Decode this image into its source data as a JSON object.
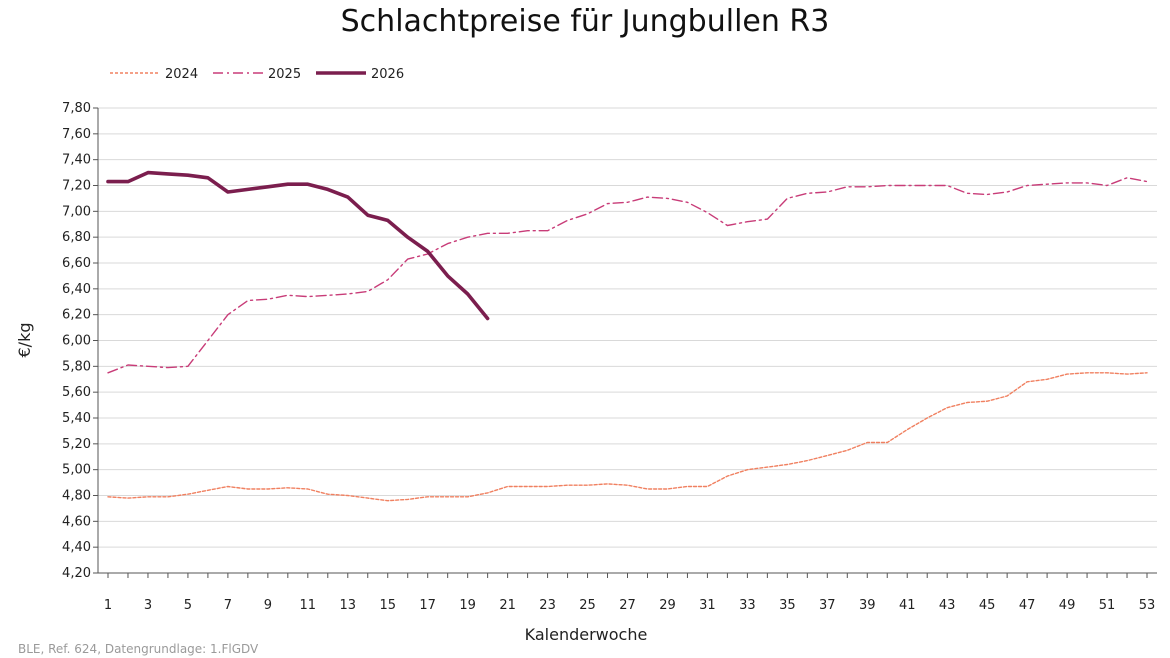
{
  "chart_data": {
    "type": "line",
    "title": "Schlachtpreise für Jungbullen R3",
    "xlabel": "Kalenderwoche",
    "ylabel": "€/kg",
    "xlim": [
      1,
      53
    ],
    "ylim": [
      4.2,
      7.8
    ],
    "x_ticks": [
      "1",
      "3",
      "5",
      "7",
      "9",
      "11",
      "13",
      "15",
      "17",
      "19",
      "21",
      "23",
      "25",
      "27",
      "29",
      "31",
      "33",
      "35",
      "37",
      "39",
      "41",
      "43",
      "45",
      "47",
      "49",
      "51",
      "53"
    ],
    "y_ticks": [
      "4,20",
      "4,40",
      "4,60",
      "4,80",
      "5,00",
      "5,20",
      "5,40",
      "5,60",
      "5,80",
      "6,00",
      "6,20",
      "6,40",
      "6,60",
      "6,80",
      "7,00",
      "7,20",
      "7,40",
      "7,60",
      "7,80"
    ],
    "grid": "horizontal",
    "legend_position": "top-left",
    "series": [
      {
        "name": "2024",
        "color": "#f08060",
        "style": "dotted",
        "x": [
          1,
          2,
          3,
          4,
          5,
          6,
          7,
          8,
          9,
          10,
          11,
          12,
          13,
          14,
          15,
          16,
          17,
          18,
          19,
          20,
          21,
          22,
          23,
          24,
          25,
          26,
          27,
          28,
          29,
          30,
          31,
          32,
          33,
          34,
          35,
          36,
          37,
          38,
          39,
          40,
          41,
          42,
          43,
          44,
          45,
          46,
          47,
          48,
          49,
          50,
          51,
          52,
          53
        ],
        "values": [
          4.79,
          4.78,
          4.79,
          4.79,
          4.81,
          4.84,
          4.87,
          4.85,
          4.85,
          4.86,
          4.85,
          4.81,
          4.8,
          4.78,
          4.76,
          4.77,
          4.79,
          4.79,
          4.79,
          4.82,
          4.87,
          4.87,
          4.87,
          4.88,
          4.88,
          4.89,
          4.88,
          4.85,
          4.85,
          4.87,
          4.87,
          4.95,
          5.0,
          5.02,
          5.04,
          5.07,
          5.11,
          5.15,
          5.21,
          5.21,
          5.31,
          5.4,
          5.48,
          5.52,
          5.53,
          5.57,
          5.68,
          5.7,
          5.74,
          5.75,
          5.75,
          5.74,
          5.75
        ]
      },
      {
        "name": "2025",
        "color": "#c83c78",
        "style": "dashdot",
        "x": [
          1,
          2,
          3,
          4,
          5,
          6,
          7,
          8,
          9,
          10,
          11,
          12,
          13,
          14,
          15,
          16,
          17,
          18,
          19,
          20,
          21,
          22,
          23,
          24,
          25,
          26,
          27,
          28,
          29,
          30,
          31,
          32,
          33,
          34,
          35,
          36,
          37,
          38,
          39,
          40,
          41,
          42,
          43,
          44,
          45,
          46,
          47,
          48,
          49,
          50,
          51,
          52,
          53
        ],
        "values": [
          5.75,
          5.81,
          5.8,
          5.79,
          5.8,
          6.0,
          6.2,
          6.31,
          6.32,
          6.35,
          6.34,
          6.35,
          6.36,
          6.38,
          6.47,
          6.63,
          6.67,
          6.75,
          6.8,
          6.83,
          6.83,
          6.85,
          6.85,
          6.93,
          6.98,
          7.06,
          7.07,
          7.11,
          7.1,
          7.07,
          6.99,
          6.89,
          6.92,
          6.94,
          7.1,
          7.14,
          7.15,
          7.19,
          7.19,
          7.2,
          7.2,
          7.2,
          7.2,
          7.14,
          7.13,
          7.15,
          7.2,
          7.21,
          7.22,
          7.22,
          7.2,
          7.26,
          7.23
        ]
      },
      {
        "name": "2026",
        "color": "#7b1e4e",
        "style": "solid-thick",
        "x": [
          1,
          2,
          3,
          4,
          5,
          6,
          7,
          8,
          9,
          10,
          11,
          12,
          13,
          14,
          15,
          16,
          17,
          18,
          19,
          20
        ],
        "values": [
          7.23,
          7.23,
          7.3,
          7.29,
          7.28,
          7.26,
          7.15,
          7.17,
          7.19,
          7.21,
          7.21,
          7.17,
          7.11,
          6.97,
          6.93,
          6.8,
          6.69,
          6.5,
          6.36,
          6.17
        ]
      }
    ]
  },
  "source_note": "BLE, Ref. 624, Datengrundlage: 1.FlGDV"
}
